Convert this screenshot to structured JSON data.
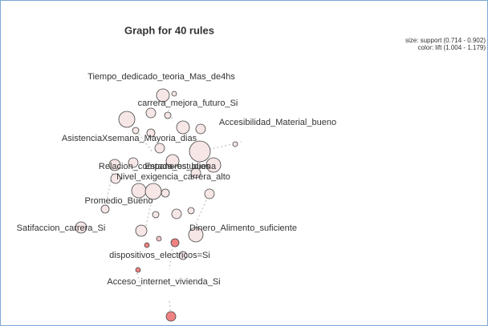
{
  "title": "Graph for 40 rules",
  "legend": {
    "size": "size: support (0.714 - 0.902)",
    "color": "color: lift (1.004 - 1.179)"
  },
  "nodes": [
    {
      "label": "Tiempo_dedicado_teoria_Mas_de4hs"
    },
    {
      "label": "carrera_mejora_futuro_Si"
    },
    {
      "label": "Accesibilidad_Material_bueno"
    },
    {
      "label": "AsistenciaXsemana_Mayoria_dias"
    },
    {
      "label": "Relacion_companeros_buena"
    },
    {
      "label": "Estado_estudios"
    },
    {
      "label": "Nivel_exigencia_carrera_alto"
    },
    {
      "label": "Promedio_Bueno"
    },
    {
      "label": "Satifaccion_carrera_Si"
    },
    {
      "label": "Dinero_Alimento_suficiente"
    },
    {
      "label": "dispositivos_electricos=Si"
    },
    {
      "label": "Acceso_internet_vivienda_Si"
    }
  ]
}
